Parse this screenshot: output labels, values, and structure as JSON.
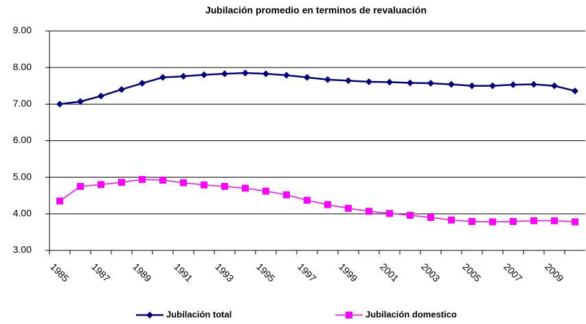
{
  "chart_data": {
    "type": "line",
    "title": "Jubilación promedio en terminos de revaluación",
    "categories": [
      "1985",
      null,
      "1987",
      null,
      "1989",
      null,
      "1991",
      null,
      "1993",
      null,
      "1995",
      null,
      "1997",
      null,
      "1999",
      null,
      "2001",
      null,
      "2003",
      null,
      "2005",
      null,
      "2007",
      null,
      "2009",
      null
    ],
    "series": [
      {
        "name": "Jubilación total",
        "color": "#000080",
        "marker": "diamond",
        "values": [
          7.0,
          7.07,
          7.22,
          7.4,
          7.57,
          7.73,
          7.76,
          7.8,
          7.83,
          7.85,
          7.83,
          7.79,
          7.73,
          7.67,
          7.64,
          7.61,
          7.6,
          7.58,
          7.57,
          7.54,
          7.5,
          7.5,
          7.53,
          7.54,
          7.5,
          7.36
        ]
      },
      {
        "name": "Jubilación domestico",
        "color": "#ff00ff",
        "marker": "square",
        "values": [
          4.35,
          4.75,
          4.8,
          4.86,
          4.94,
          4.92,
          4.85,
          4.79,
          4.75,
          4.7,
          4.62,
          4.52,
          4.37,
          4.25,
          4.15,
          4.07,
          4.01,
          3.96,
          3.9,
          3.83,
          3.79,
          3.78,
          3.79,
          3.81,
          3.81,
          3.78
        ]
      }
    ],
    "ylim": [
      3,
      9
    ],
    "yticks": [
      {
        "value": 3,
        "label": "3.00"
      },
      {
        "value": 4,
        "label": "4.00"
      },
      {
        "value": 5,
        "label": "5.00"
      },
      {
        "value": 6,
        "label": "6.00"
      },
      {
        "value": 7,
        "label": "7.00"
      },
      {
        "value": 8,
        "label": "8.00"
      },
      {
        "value": 9,
        "label": "9.00"
      }
    ],
    "grid": true,
    "legend": "bottom"
  }
}
